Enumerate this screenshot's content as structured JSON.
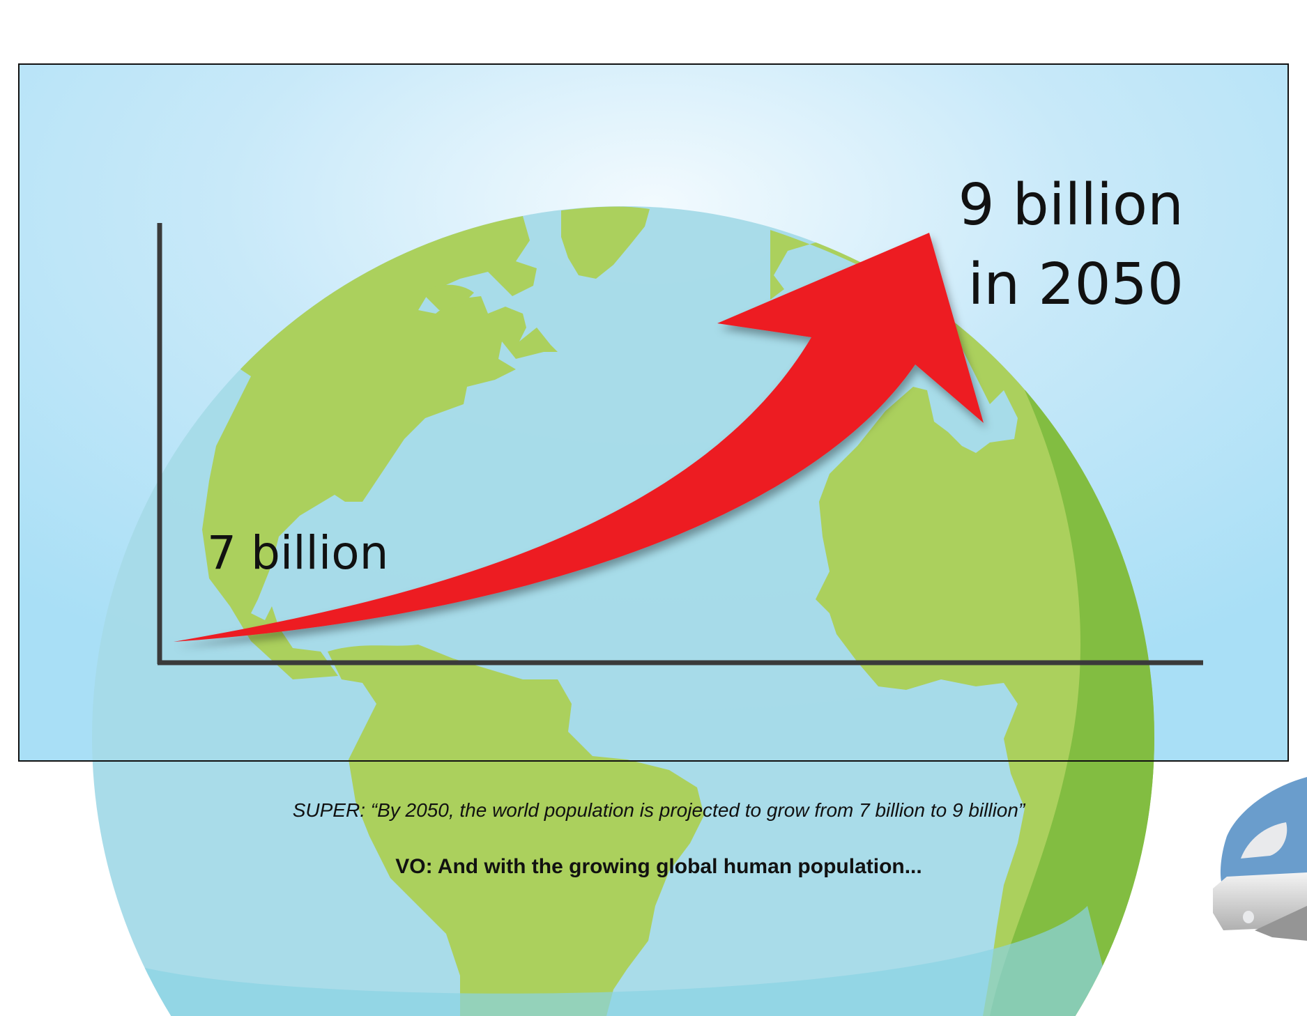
{
  "frame": {
    "label_start": "7 billion",
    "label_end_line1": "9 billion",
    "label_end_line2": "in 2050"
  },
  "captions": {
    "super": "SUPER: “By 2050, the world population is projected to grow from 7 billion to 9 billion”",
    "vo": "VO: And with the growing global human population..."
  },
  "icons": [
    "globe-illustration",
    "growth-arrow-icon",
    "train-illustration"
  ],
  "colors": {
    "sky": "#aee0f6",
    "ocean": "#a6dbe8",
    "land": "#abd05d",
    "land_shade": "#82bd41",
    "arrow": "#ed1c24",
    "axis": "#3a3a3a",
    "train_blue": "#6a9dcc"
  }
}
